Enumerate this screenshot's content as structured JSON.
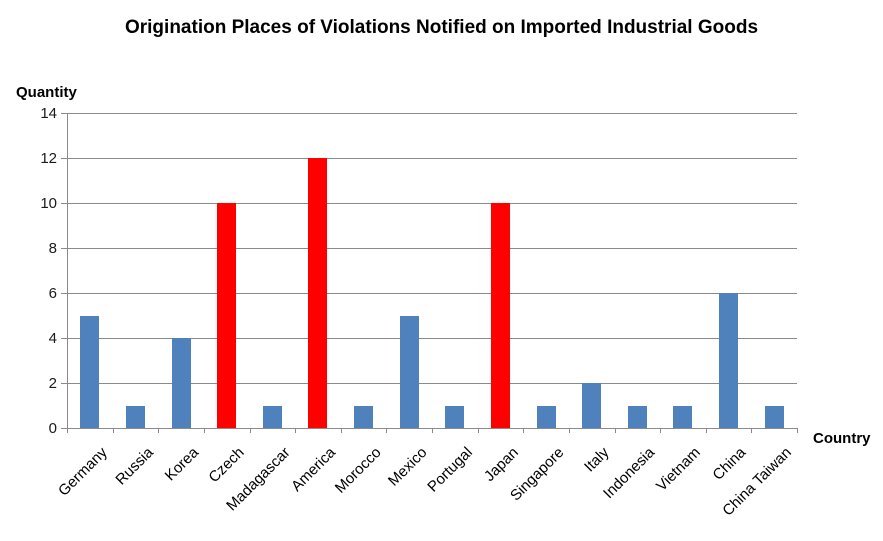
{
  "chart_data": {
    "type": "bar",
    "title": "Origination Places of Violations Notified on Imported Industrial Goods",
    "xlabel": "Country",
    "ylabel": "Quantity",
    "categories": [
      "Germany",
      "Russia",
      "Korea",
      "Czech",
      "Madagascar",
      "America",
      "Morocco",
      "Mexico",
      "Portugal",
      "Japan",
      "Singapore",
      "Italy",
      "Indonesia",
      "Vietnam",
      "China",
      "China Taiwan"
    ],
    "values": [
      5,
      1,
      4,
      10,
      1,
      12,
      1,
      5,
      1,
      10,
      1,
      2,
      1,
      1,
      6,
      1
    ],
    "highlighted_categories": [
      "Czech",
      "America",
      "Japan"
    ],
    "ylim": [
      0,
      14
    ],
    "yticks": [
      0,
      2,
      4,
      6,
      8,
      10,
      12,
      14
    ],
    "grid": "horizontal",
    "legend": "none",
    "colors": {
      "bar_default": "#4F81BD",
      "bar_highlight": "#FF0000",
      "gridline": "#8A8A8A",
      "axis": "#8A8A8A",
      "text": "#000000"
    }
  }
}
